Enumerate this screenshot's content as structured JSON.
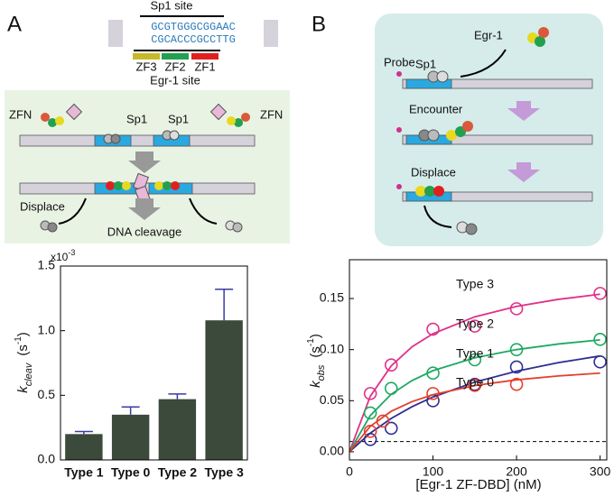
{
  "panels": {
    "a": "A",
    "b": "B"
  },
  "panel_a_diagram": {
    "sp1_site": "Sp1 site",
    "seq_top": "GCGTGGGCGGAAC",
    "seq_bottom": "CGCACCCGCCTTG",
    "zf3": "ZF3",
    "zf2": "ZF2",
    "zf1": "ZF1",
    "egr1_site": "Egr-1 site",
    "zfn_left": "ZFN",
    "zfn_right": "ZFN",
    "sp1_left": "Sp1",
    "sp1_right": "Sp1",
    "displace": "Displace",
    "dna_cleavage": "DNA cleavage"
  },
  "panel_b_diagram": {
    "egr1": "Egr-1",
    "probe": "Probe",
    "sp1": "Sp1",
    "encounter": "Encounter",
    "displace": "Displace"
  },
  "chart_data": [
    {
      "type": "bar",
      "categories": [
        "Type 1",
        "Type 0",
        "Type 2",
        "Type 3"
      ],
      "values": [
        0.2,
        0.35,
        0.47,
        1.08
      ],
      "errors": [
        0.02,
        0.06,
        0.04,
        0.24
      ],
      "color": "#3b4a3b",
      "error_color": "#3a3aa8",
      "ylabel": {
        "symbol": "k",
        "subscript": "cleav",
        "unit": "(s",
        "unit_exponent": "-1",
        "unit_close": ")"
      },
      "y_multiplier": {
        "base": "x10",
        "exponent": "-3"
      },
      "ylim": [
        0,
        1.5
      ],
      "yticks": [
        {
          "value": 0,
          "label": "0.0"
        },
        {
          "value": 0.5,
          "label": "0.5"
        },
        {
          "value": 1,
          "label": "1.0"
        },
        {
          "value": 1.5,
          "label": "1.5"
        }
      ],
      "grid": false
    },
    {
      "type": "scatter",
      "xlabel": "[Egr-1 ZF-DBD] (nM)",
      "ylabel": {
        "symbol": "k",
        "subscript": "obs",
        "unit": "(s",
        "unit_exponent": "-1",
        "unit_close": ")"
      },
      "xlim": [
        0,
        308
      ],
      "ylim": [
        -0.008,
        0.188
      ],
      "xticks": [
        0,
        100,
        200,
        300
      ],
      "yticks": [
        {
          "value": 0,
          "label": "0.00"
        },
        {
          "value": 0.05,
          "label": "0.05"
        },
        {
          "value": 0.1,
          "label": "0.10"
        },
        {
          "value": 0.15,
          "label": "0.15"
        }
      ],
      "reference_line": 0.01,
      "fit_x": [
        0,
        25,
        50,
        75,
        100,
        150,
        200,
        250,
        300
      ],
      "series": [
        {
          "name": "Type 3",
          "color": "#e0308a",
          "x": [
            25,
            50,
            100,
            150,
            200,
            300
          ],
          "values": [
            0.057,
            0.085,
            0.12,
            0.123,
            0.14,
            0.155
          ],
          "fit_values": [
            0,
            0.0544,
            0.0841,
            0.1028,
            0.1156,
            0.1321,
            0.1423,
            0.1492,
            0.1542
          ]
        },
        {
          "name": "Type 2",
          "color": "#1fa862",
          "x": [
            25,
            50,
            100,
            150,
            200,
            300
          ],
          "values": [
            0.038,
            0.062,
            0.077,
            0.09,
            0.1,
            0.11
          ],
          "fit_values": [
            0,
            0.0355,
            0.0563,
            0.0698,
            0.0794,
            0.092,
            0.1,
            0.1055,
            0.1095
          ]
        },
        {
          "name": "Type 1",
          "color": "#2e2e92",
          "x": [
            25,
            50,
            100,
            150,
            200,
            300
          ],
          "values": [
            0.012,
            0.023,
            0.05,
            0.066,
            0.083,
            0.088
          ],
          "fit_values": [
            0,
            0.0183,
            0.0326,
            0.0441,
            0.0536,
            0.0682,
            0.0789,
            0.0872,
            0.0938
          ]
        },
        {
          "name": "Type 0",
          "color": "#e2402e",
          "x": [
            25,
            40,
            100,
            150,
            200
          ],
          "values": [
            0.02,
            0.03,
            0.057,
            0.065,
            0.066
          ],
          "fit_values": [
            0,
            0.025,
            0.0396,
            0.0491,
            0.0559,
            0.0648,
            0.0704,
            0.0742,
            0.077
          ]
        }
      ]
    }
  ]
}
